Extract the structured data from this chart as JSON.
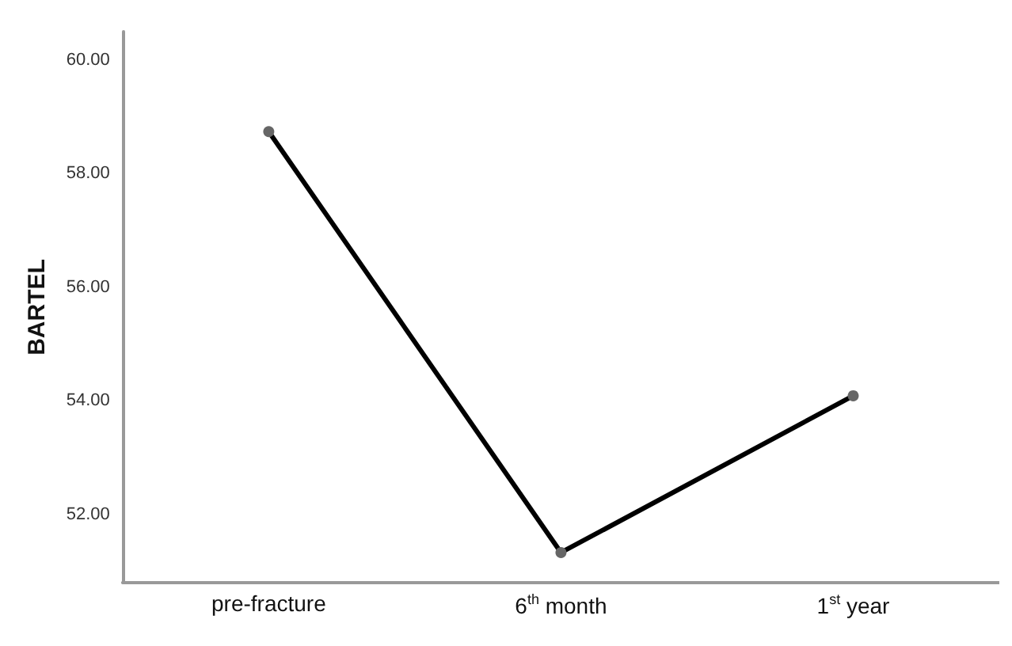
{
  "chart_data": {
    "type": "line",
    "ylabel": "BARTEL",
    "categories": [
      "pre-fracture",
      "6$^{th}$ month",
      "1$^{st}$ year"
    ],
    "series": [
      {
        "color": "#000000",
        "values": [
          58.74,
          51.33,
          54.09
        ]
      }
    ],
    "ylim": [
      50.8,
      60.5
    ],
    "yticks": [
      {
        "value": 52,
        "label": "52.00"
      },
      {
        "value": 54,
        "label": "54.00"
      },
      {
        "value": 56,
        "label": "56.00"
      },
      {
        "value": 58,
        "label": "58.00"
      },
      {
        "value": 60,
        "label": "60.00"
      }
    ],
    "grid": false,
    "marker": "circle"
  }
}
